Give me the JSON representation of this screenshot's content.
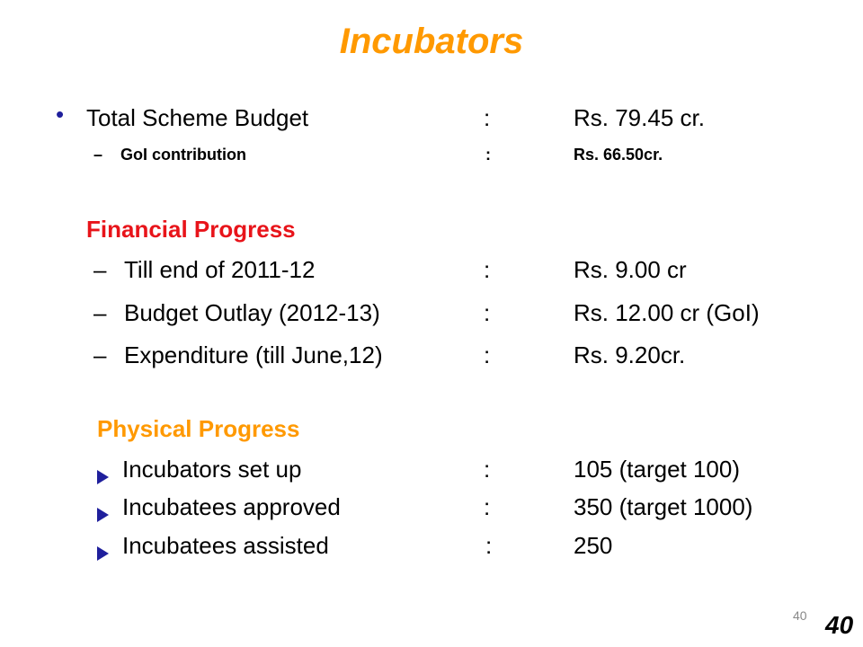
{
  "title": "Incubators",
  "budget": {
    "bullet": "•",
    "label": "Total Scheme Budget",
    "colon": ":",
    "value": "Rs. 79.45 cr.",
    "sub": {
      "dash": "–",
      "label": "GoI contribution",
      "colon": ":",
      "value": "Rs. 66.50cr."
    }
  },
  "financial": {
    "heading": "Financial Progress",
    "items": [
      {
        "dash": "–",
        "label": "Till end of 2011-12",
        "colon": ":",
        "value": "Rs. 9.00 cr"
      },
      {
        "dash": "–",
        "label": "Budget Outlay (2012-13)",
        "colon": ":",
        "value": "Rs. 12.00 cr (GoI)"
      },
      {
        "dash": "–",
        "label": "Expenditure (till June,12)",
        "colon": ":",
        "value": "Rs. 9.20cr."
      }
    ]
  },
  "physical": {
    "heading": "Physical Progress",
    "items": [
      {
        "label": "Incubators set up",
        "colon": ":",
        "value": "105 (target 100)"
      },
      {
        "label": "Incubatees approved",
        "colon": ":",
        "value": "350 (target 1000)"
      },
      {
        "label": "Incubatees assisted",
        "colon": ":",
        "value": "250"
      }
    ]
  },
  "footer": {
    "slide_number_small": "40",
    "slide_number_large": "40"
  },
  "colors": {
    "title": "#ff9900",
    "text": "#000000",
    "financial_heading": "#e8141a",
    "physical_heading": "#ff9900",
    "marker": "#1f1f9c"
  }
}
